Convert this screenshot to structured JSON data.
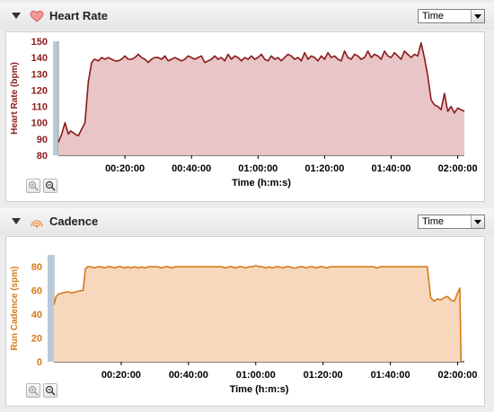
{
  "panels": [
    {
      "title": "Heart Rate",
      "icon": "heart-icon",
      "select_value": "Time",
      "color": "#8b1a1a",
      "fill": "#e8c5c6",
      "chart_data": {
        "type": "area",
        "xlabel": "Time (h:m:s)",
        "ylabel": "Heart Rate (bpm)",
        "ylim": [
          80,
          150
        ],
        "yticks": [
          "80",
          "90",
          "100",
          "110",
          "120",
          "130",
          "140",
          "150"
        ],
        "xlim": [
          0,
          7320
        ],
        "xticks": [
          "00:20:00",
          "00:40:00",
          "01:00:00",
          "01:20:00",
          "01:40:00",
          "02:00:00"
        ],
        "xtick_values": [
          1200,
          2400,
          3600,
          4800,
          6000,
          7200
        ],
        "series": [
          {
            "x": [
              0,
              60,
              120,
              180,
              220,
              300,
              360,
              420,
              480,
              540,
              600,
              650,
              720,
              780,
              840,
              900,
              960,
              1020,
              1080,
              1140,
              1200,
              1260,
              1320,
              1380,
              1440,
              1500,
              1560,
              1620,
              1680,
              1740,
              1800,
              1860,
              1920,
              1980,
              2040,
              2100,
              2160,
              2220,
              2280,
              2340,
              2400,
              2460,
              2520,
              2580,
              2640,
              2700,
              2760,
              2820,
              2880,
              2940,
              3000,
              3060,
              3120,
              3180,
              3240,
              3300,
              3360,
              3420,
              3480,
              3540,
              3600,
              3660,
              3720,
              3780,
              3840,
              3900,
              3960,
              4020,
              4080,
              4140,
              4200,
              4260,
              4320,
              4380,
              4440,
              4500,
              4560,
              4620,
              4680,
              4740,
              4800,
              4860,
              4920,
              4980,
              5040,
              5100,
              5160,
              5220,
              5280,
              5340,
              5400,
              5460,
              5520,
              5580,
              5640,
              5700,
              5760,
              5820,
              5880,
              5940,
              6000,
              6060,
              6120,
              6180,
              6240,
              6300,
              6360,
              6420,
              6480,
              6540,
              6600,
              6660,
              6720,
              6780,
              6840,
              6900,
              6960,
              7020,
              7080,
              7140,
              7200,
              7260,
              7320
            ],
            "y": [
              88,
              93,
              100,
              93,
              95,
              93,
              92,
              96,
              100,
              125,
              137,
              139,
              138,
              140,
              139,
              140,
              139,
              138,
              138,
              139,
              141,
              139,
              139,
              140,
              142,
              140,
              139,
              137,
              139,
              140,
              140,
              139,
              141,
              138,
              139,
              140,
              139,
              138,
              139,
              141,
              140,
              139,
              140,
              141,
              137,
              138,
              139,
              141,
              139,
              140,
              138,
              142,
              139,
              141,
              140,
              138,
              140,
              139,
              141,
              139,
              140,
              142,
              139,
              138,
              141,
              139,
              140,
              138,
              140,
              142,
              141,
              139,
              140,
              138,
              143,
              139,
              141,
              140,
              138,
              141,
              139,
              143,
              140,
              141,
              139,
              138,
              144,
              140,
              139,
              142,
              141,
              139,
              140,
              144,
              140,
              142,
              141,
              139,
              144,
              141,
              140,
              143,
              141,
              139,
              144,
              142,
              140,
              142,
              141,
              149,
              140,
              129,
              114,
              111,
              110,
              108,
              118,
              107,
              110,
              106,
              109,
              108,
              107
            ]
          }
        ]
      }
    },
    {
      "title": "Cadence",
      "icon": "cadence-icon",
      "select_value": "Time",
      "color": "#d47a1a",
      "fill": "#f7d8bd",
      "chart_data": {
        "type": "area",
        "xlabel": "Time (h:m:s)",
        "ylabel": "Run Cadence (spm)",
        "ylim": [
          0,
          90
        ],
        "yticks": [
          "0",
          "20",
          "40",
          "60",
          "80"
        ],
        "xlim": [
          0,
          7320
        ],
        "xticks": [
          "00:20:00",
          "00:40:00",
          "01:00:00",
          "01:20:00",
          "01:40:00",
          "02:00:00"
        ],
        "xtick_values": [
          1200,
          2400,
          3600,
          4800,
          6000,
          7200
        ],
        "series": [
          {
            "x": [
              0,
              40,
              80,
              160,
              240,
              320,
              400,
              480,
              520,
              560,
              600,
              660,
              720,
              780,
              840,
              900,
              960,
              1020,
              1080,
              1140,
              1200,
              1260,
              1320,
              1380,
              1440,
              1500,
              1560,
              1620,
              1680,
              1740,
              1800,
              1860,
              1920,
              1980,
              2040,
              2100,
              2160,
              2220,
              2280,
              2340,
              2400,
              2460,
              2520,
              2580,
              2640,
              2700,
              2760,
              2820,
              2880,
              2940,
              3000,
              3060,
              3120,
              3180,
              3240,
              3300,
              3360,
              3420,
              3480,
              3540,
              3600,
              3660,
              3720,
              3780,
              3840,
              3900,
              3960,
              4020,
              4080,
              4140,
              4200,
              4260,
              4320,
              4380,
              4440,
              4500,
              4560,
              4620,
              4680,
              4740,
              4800,
              4860,
              4920,
              4980,
              5040,
              5100,
              5160,
              5220,
              5280,
              5340,
              5400,
              5460,
              5520,
              5580,
              5640,
              5700,
              5760,
              5820,
              5880,
              5940,
              6000,
              6060,
              6120,
              6180,
              6240,
              6300,
              6360,
              6420,
              6480,
              6540,
              6600,
              6660,
              6720,
              6780,
              6840,
              6900,
              6960,
              7020,
              7080,
              7140,
              7200,
              7240,
              7260
            ],
            "y": [
              48,
              55,
              57,
              58,
              59,
              58,
              59,
              60,
              60,
              78,
              80,
              80,
              79,
              80,
              80,
              79,
              80,
              80,
              79,
              80,
              80,
              79,
              80,
              79,
              80,
              79,
              80,
              79,
              80,
              80,
              80,
              80,
              79,
              80,
              80,
              79,
              80,
              80,
              80,
              80,
              80,
              80,
              80,
              80,
              80,
              80,
              80,
              80,
              80,
              80,
              80,
              79,
              80,
              80,
              79,
              80,
              80,
              79,
              80,
              80,
              81,
              80,
              80,
              79,
              80,
              79,
              80,
              80,
              79,
              80,
              80,
              79,
              79,
              80,
              80,
              79,
              80,
              80,
              79,
              80,
              80,
              79,
              80,
              80,
              80,
              80,
              80,
              80,
              80,
              80,
              80,
              80,
              80,
              80,
              80,
              80,
              79,
              80,
              80,
              80,
              80,
              80,
              80,
              80,
              80,
              80,
              80,
              80,
              80,
              80,
              80,
              80,
              54,
              51,
              53,
              52,
              54,
              55,
              52,
              51,
              58,
              62,
              0
            ]
          }
        ]
      }
    }
  ]
}
